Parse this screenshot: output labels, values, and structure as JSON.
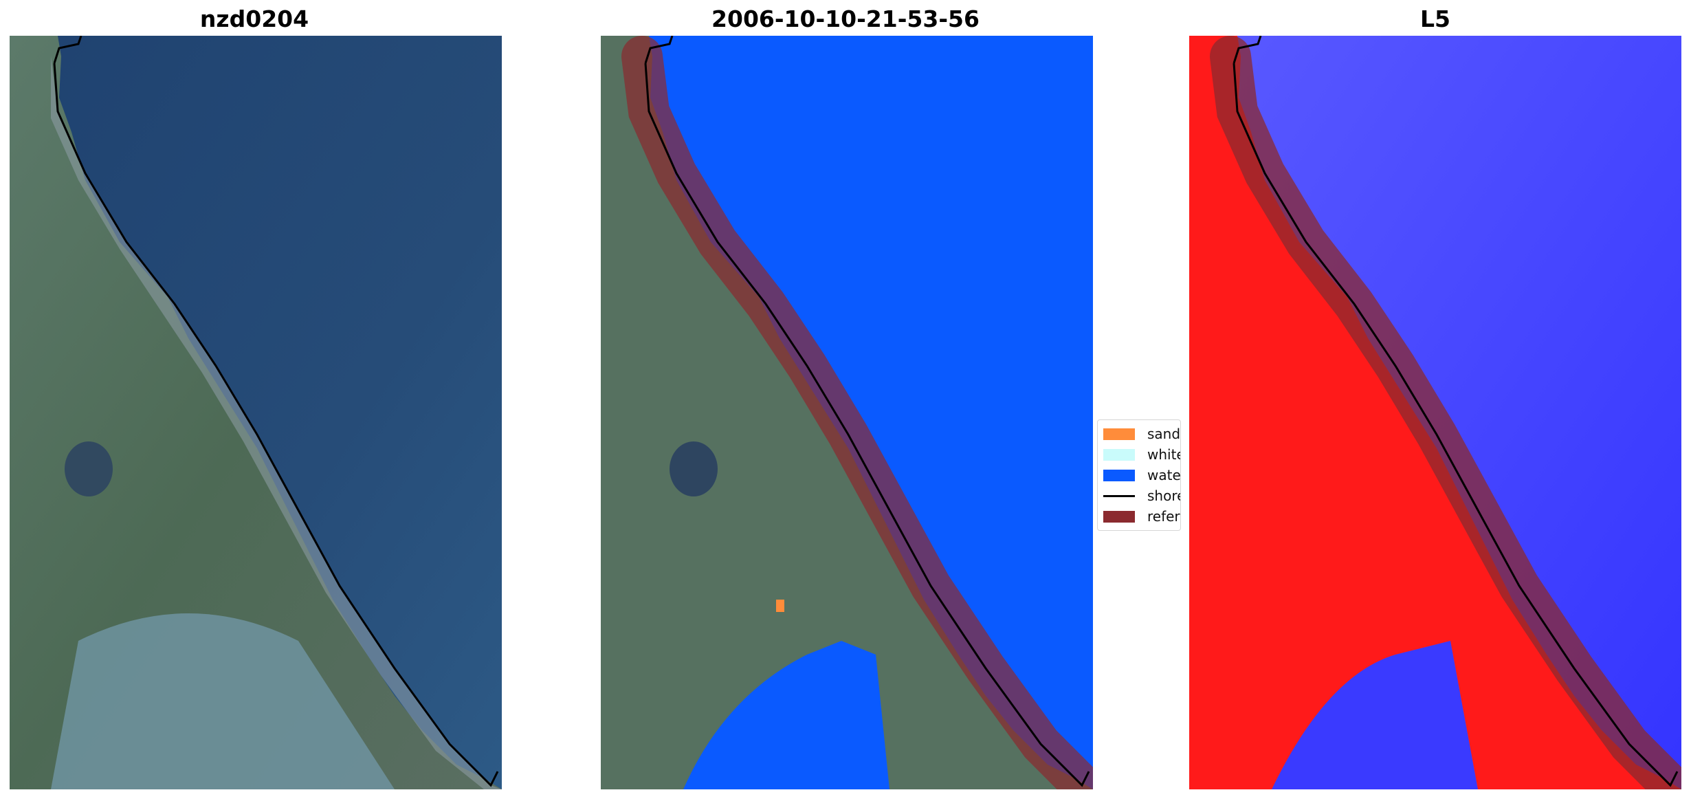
{
  "panels": [
    {
      "title": "nzd0204"
    },
    {
      "title": "2006-10-10-21-53-56"
    },
    {
      "title": "L5"
    }
  ],
  "legend": {
    "items": [
      {
        "label": "sand",
        "color": "#ff8c3a",
        "kind": "patch"
      },
      {
        "label": "whitewater",
        "color": "#c9fbfb",
        "kind": "patch"
      },
      {
        "label": "water",
        "color": "#0a5aff",
        "kind": "patch"
      },
      {
        "label": "shoreline",
        "color": "#000000",
        "kind": "line"
      },
      {
        "label": "reference shoreline",
        "color": "#8b2a2f",
        "kind": "patch"
      }
    ]
  },
  "colors": {
    "ocean": "#264a72",
    "land": "#4f6a58",
    "water_class": "#0a5aff",
    "reference_buffer": "#8b2a2f",
    "index_positive": "#ff1a1a",
    "index_negative": "#3a3aff"
  }
}
